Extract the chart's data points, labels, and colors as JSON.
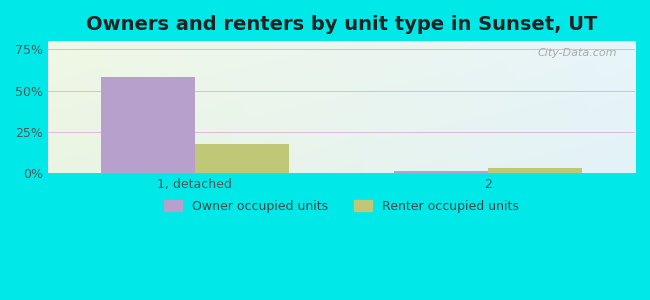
{
  "title": "Owners and renters by unit type in Sunset, UT",
  "categories": [
    "1, detached",
    "2"
  ],
  "owner_values": [
    58.5,
    1.5
  ],
  "renter_values": [
    18.0,
    3.5
  ],
  "owner_color": "#b8a0cc",
  "renter_color": "#c0c878",
  "yticks": [
    0,
    25,
    50,
    75
  ],
  "ylim": [
    0,
    80
  ],
  "legend_owner": "Owner occupied units",
  "legend_renter": "Renter occupied units",
  "bar_width": 0.32,
  "watermark": "City-Data.com",
  "title_fontsize": 14,
  "tick_fontsize": 9,
  "legend_fontsize": 9,
  "outer_bg": "#00e8e8",
  "grid_color": "#e8c8e8"
}
